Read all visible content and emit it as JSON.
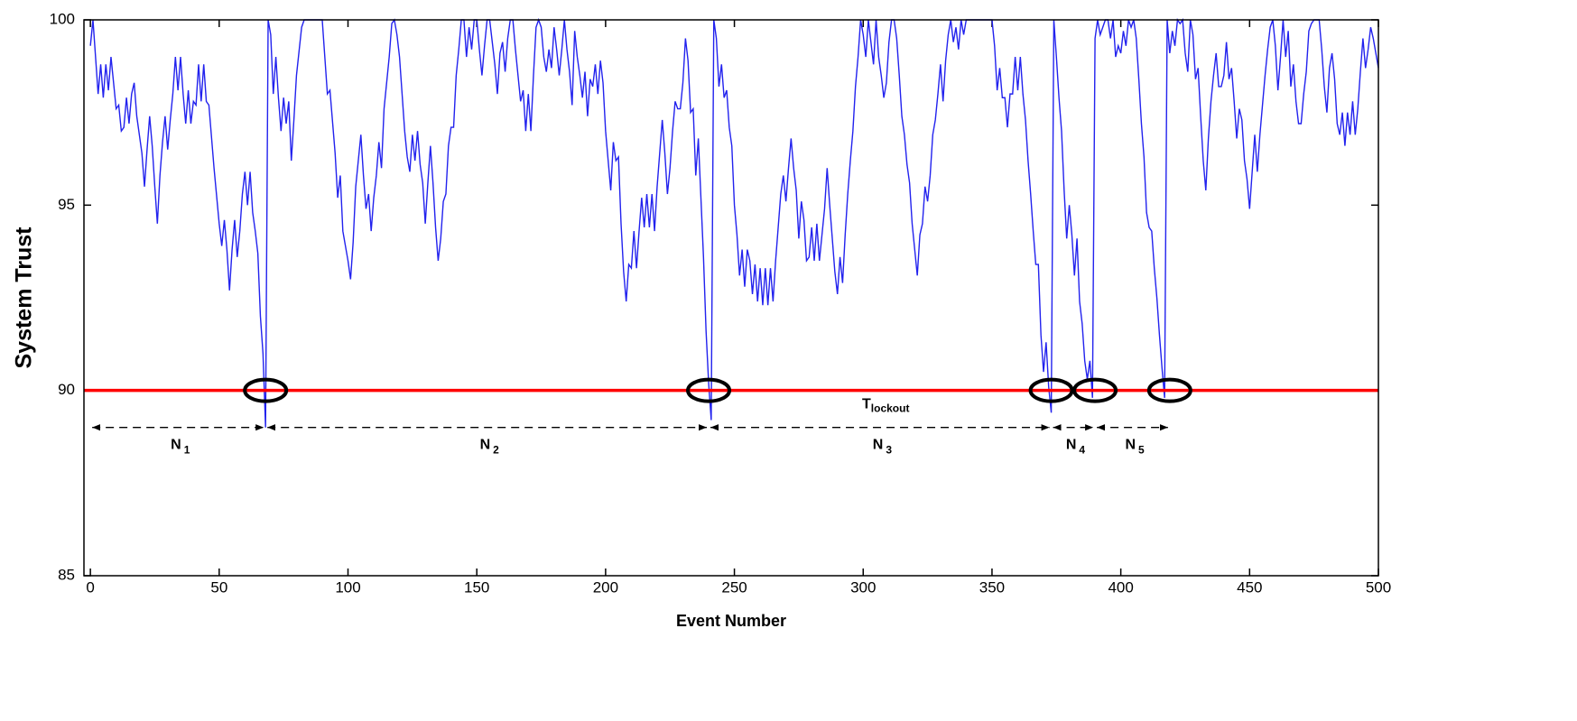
{
  "chart_data": {
    "type": "line",
    "xlabel": "Event Number",
    "ylabel": "System Trust",
    "color": "#2222ee",
    "xlim": [
      -2.5,
      500
    ],
    "ylim": [
      85,
      100
    ],
    "xticks": [
      0,
      50,
      100,
      150,
      200,
      250,
      300,
      350,
      400,
      450,
      500
    ],
    "yticks": [
      85,
      90,
      95,
      100
    ],
    "threshold": {
      "value": 90,
      "color": "#ff0000",
      "label": "T",
      "sub": "lockout"
    },
    "lockouts": [
      68,
      240,
      373,
      390,
      419
    ],
    "intervals": [
      {
        "label": "N",
        "sub": "1"
      },
      {
        "label": "N",
        "sub": "2"
      },
      {
        "label": "N",
        "sub": "3"
      },
      {
        "label": "N",
        "sub": "4"
      },
      {
        "label": "N",
        "sub": "5"
      }
    ],
    "x": [
      0,
      1,
      3,
      4,
      5,
      6,
      7,
      8,
      9,
      10,
      11,
      12,
      13,
      14,
      15,
      16,
      17,
      18,
      20,
      21,
      22,
      23,
      24,
      25,
      26,
      27,
      28,
      29,
      30,
      31,
      32,
      33,
      34,
      35,
      36,
      37,
      38,
      39,
      40,
      41,
      42,
      43,
      44,
      45,
      46,
      48,
      50,
      51,
      52,
      53,
      54,
      55,
      56,
      57,
      58,
      59,
      60,
      61,
      62,
      63,
      64,
      65,
      66,
      67,
      68,
      69,
      70,
      71,
      72,
      73,
      74,
      75,
      76,
      77,
      78,
      79,
      80,
      82,
      83,
      87,
      90,
      92,
      93,
      95,
      96,
      97,
      98,
      100,
      101,
      102,
      103,
      104,
      105,
      106,
      107,
      108,
      109,
      110,
      111,
      112,
      113,
      114,
      116,
      117,
      118,
      119,
      120,
      121,
      122,
      123,
      124,
      125,
      126,
      127,
      128,
      129,
      130,
      131,
      132,
      133,
      134,
      135,
      136,
      137,
      138,
      139,
      140,
      141,
      142,
      143,
      144,
      145,
      146,
      147,
      148,
      149,
      150,
      151,
      152,
      153,
      154,
      155,
      156,
      157,
      158,
      159,
      160,
      161,
      162,
      163,
      164,
      165,
      166,
      167,
      168,
      169,
      170,
      171,
      172,
      173,
      174,
      175,
      176,
      177,
      178,
      179,
      180,
      181,
      182,
      183,
      184,
      185,
      186,
      187,
      188,
      189,
      190,
      191,
      192,
      193,
      194,
      195,
      196,
      197,
      198,
      199,
      200,
      201,
      202,
      203,
      204,
      205,
      206,
      207,
      208,
      209,
      210,
      211,
      212,
      213,
      214,
      215,
      216,
      217,
      218,
      219,
      220,
      221,
      222,
      223,
      224,
      225,
      226,
      227,
      228,
      229,
      230,
      231,
      232,
      233,
      234,
      235,
      236,
      237,
      238,
      239,
      240,
      241,
      242,
      243,
      244,
      245,
      246,
      247,
      248,
      249,
      250,
      251,
      252,
      253,
      254,
      255,
      256,
      257,
      258,
      259,
      260,
      261,
      262,
      263,
      264,
      265,
      266,
      267,
      268,
      269,
      270,
      271,
      272,
      273,
      274,
      275,
      276,
      277,
      278,
      279,
      280,
      281,
      282,
      283,
      284,
      285,
      286,
      287,
      288,
      289,
      290,
      291,
      292,
      293,
      294,
      295,
      296,
      297,
      298,
      299,
      300,
      301,
      302,
      303,
      304,
      305,
      306,
      307,
      308,
      309,
      310,
      311,
      312,
      313,
      314,
      315,
      316,
      317,
      318,
      319,
      320,
      321,
      322,
      323,
      324,
      325,
      326,
      327,
      328,
      329,
      330,
      331,
      332,
      333,
      334,
      335,
      336,
      337,
      338,
      339,
      340,
      350,
      351,
      352,
      353,
      354,
      355,
      356,
      357,
      358,
      359,
      360,
      361,
      362,
      363,
      364,
      365,
      366,
      367,
      368,
      369,
      370,
      371,
      372,
      373,
      374,
      375,
      376,
      377,
      378,
      379,
      380,
      381,
      382,
      383,
      384,
      385,
      386,
      387,
      388,
      389,
      390,
      391,
      392,
      393,
      394,
      395,
      396,
      397,
      398,
      399,
      400,
      401,
      402,
      403,
      404,
      405,
      406,
      407,
      408,
      409,
      410,
      411,
      412,
      413,
      414,
      415,
      416,
      417,
      418,
      419,
      420,
      421,
      422,
      423,
      424,
      425,
      426,
      427,
      428,
      429,
      430,
      431,
      432,
      433,
      434,
      435,
      436,
      437,
      438,
      439,
      440,
      441,
      442,
      443,
      444,
      445,
      446,
      447,
      448,
      449,
      450,
      451,
      452,
      453,
      454,
      455,
      456,
      457,
      458,
      459,
      460,
      461,
      462,
      463,
      464,
      465,
      466,
      467,
      468,
      469,
      470,
      471,
      472,
      473,
      474,
      475,
      476,
      477,
      478,
      479,
      480,
      481,
      482,
      483,
      484,
      485,
      486,
      487,
      488,
      489,
      490,
      491,
      492,
      493,
      494,
      495,
      496,
      497,
      498,
      500
    ],
    "values": [
      99.3,
      100,
      98,
      98.8,
      97.9,
      98.8,
      98.1,
      99,
      98.3,
      97.6,
      97.7,
      97,
      97.1,
      97.9,
      97.2,
      98,
      98.3,
      97.4,
      96.4,
      95.5,
      96.5,
      97.4,
      96.6,
      95.5,
      94.5,
      95.8,
      96.7,
      97.4,
      96.5,
      97.3,
      98,
      99,
      98.1,
      99,
      98,
      97.2,
      98.1,
      97.2,
      97.8,
      97.7,
      98.8,
      97.8,
      98.8,
      97.8,
      97.7,
      96,
      94.5,
      93.9,
      94.6,
      93.8,
      92.7,
      93.8,
      94.6,
      93.6,
      94.3,
      95.3,
      95.9,
      95,
      95.9,
      94.8,
      94.3,
      93.7,
      92,
      91,
      89,
      100,
      99.6,
      98,
      99,
      97.9,
      97,
      97.9,
      97.2,
      97.8,
      96.2,
      97.3,
      98.5,
      99.8,
      100,
      100,
      100,
      98,
      98.1,
      96.4,
      95.2,
      95.8,
      94.3,
      93.5,
      93,
      94,
      95.5,
      96.2,
      96.9,
      95.8,
      94.9,
      95.3,
      94.3,
      95.2,
      95.8,
      96.7,
      96,
      97.6,
      99,
      99.9,
      100,
      99.6,
      99,
      98,
      97,
      96.3,
      95.9,
      96.9,
      96.2,
      97,
      96.1,
      95.6,
      94.5,
      95.6,
      96.6,
      95.6,
      94.4,
      93.5,
      94.1,
      95.1,
      95.3,
      96.6,
      97.1,
      97.1,
      98.5,
      99.2,
      100,
      100,
      99,
      99.8,
      99.2,
      100,
      100,
      99.2,
      98.5,
      99.3,
      100,
      100,
      99.4,
      98.8,
      98,
      99.1,
      99.4,
      98.6,
      99.5,
      100,
      100,
      99.2,
      98.5,
      97.8,
      98.1,
      97,
      98,
      97,
      98.5,
      99.8,
      100,
      99.8,
      99,
      98.6,
      99.2,
      98.7,
      99.8,
      99.2,
      98.5,
      99.2,
      100,
      99.2,
      98.6,
      97.7,
      99.7,
      99,
      98.5,
      97.9,
      98.6,
      97.4,
      98.4,
      98.2,
      98.8,
      98,
      98.9,
      98.3,
      97,
      96.2,
      95.4,
      96.7,
      96.2,
      96.3,
      94.5,
      93.2,
      92.4,
      93.4,
      93.3,
      94.3,
      93.3,
      94.3,
      95.2,
      94.4,
      95.3,
      94.4,
      95.3,
      94.3,
      95.5,
      96.4,
      97.3,
      96.4,
      95.3,
      96,
      97,
      97.8,
      97.6,
      97.6,
      98.3,
      99.5,
      98.9,
      97.5,
      97.6,
      95.8,
      96.8,
      95.2,
      93.6,
      91.6,
      90.2,
      89.2,
      100,
      99.5,
      98.2,
      98.8,
      97.9,
      98.1,
      97.1,
      96.6,
      95,
      94.2,
      93.1,
      93.8,
      92.8,
      93.8,
      93.5,
      92.6,
      93.4,
      92.4,
      93.3,
      92.3,
      93.3,
      92.3,
      93.3,
      92.4,
      93.5,
      94.4,
      95.3,
      95.8,
      95.1,
      96,
      96.8,
      96,
      95.4,
      94.1,
      95.1,
      94.6,
      93.5,
      93.6,
      94.4,
      93.5,
      94.5,
      93.5,
      94.2,
      94.9,
      96,
      95,
      94.1,
      93.2,
      92.6,
      93.6,
      92.9,
      94.2,
      95.3,
      96.2,
      97,
      98.2,
      99,
      100,
      99.6,
      99,
      100,
      99.4,
      98.8,
      100,
      99,
      98.5,
      97.9,
      98.3,
      99.4,
      100,
      100,
      99.5,
      98.5,
      97.4,
      96.9,
      96.1,
      95.6,
      94.5,
      93.8,
      93.1,
      94.2,
      94.5,
      95.5,
      95.1,
      95.8,
      96.9,
      97.3,
      98,
      98.8,
      97.8,
      98.9,
      99.6,
      100,
      99.4,
      99.8,
      99.2,
      100,
      99.6,
      100,
      100,
      99.3,
      98.1,
      98.7,
      97.9,
      97.9,
      97.1,
      98,
      98,
      99,
      98.1,
      99,
      98,
      97.3,
      96.2,
      95.3,
      94.3,
      93.4,
      93.4,
      91.5,
      90.5,
      91.3,
      90.1,
      89.4,
      100,
      99,
      97.9,
      97,
      95.4,
      94.1,
      95,
      94.2,
      93.1,
      94.1,
      92.4,
      91.8,
      90.8,
      90.3,
      90.8,
      89.8,
      99.5,
      100,
      99.6,
      99.8,
      100,
      100,
      99.5,
      100,
      99,
      99.3,
      99.1,
      99.7,
      99.3,
      100,
      99.8,
      100,
      99.5,
      98.4,
      97.2,
      96.3,
      94.8,
      94.4,
      94.3,
      93.3,
      92.5,
      91.5,
      90.6,
      89.8,
      100,
      99.1,
      99.7,
      99.3,
      100,
      99.9,
      100,
      99.1,
      98.6,
      100,
      99.6,
      98.4,
      98.7,
      97.4,
      96.2,
      95.4,
      96.8,
      97.8,
      98.5,
      99.1,
      98.2,
      98.2,
      98.5,
      99.4,
      98.4,
      98.7,
      97.8,
      96.8,
      97.6,
      97.3,
      96.2,
      95.7,
      94.9,
      95.9,
      96.9,
      95.9,
      96.9,
      97.7,
      98.5,
      99.2,
      99.8,
      100,
      99.3,
      98.1,
      99,
      100,
      99,
      99.7,
      98.2,
      98.8,
      97.8,
      97.2,
      97.2,
      98,
      98.6,
      99.7,
      99.9,
      100,
      100,
      100,
      99.2,
      98.2,
      97.5,
      98.7,
      99.1,
      98.4,
      97.2,
      96.9,
      97.5,
      96.6,
      97.5,
      96.9,
      97.8,
      96.9,
      97.6,
      98.6,
      99.5,
      98.7,
      99.2,
      99.8,
      99.5,
      98.7
    ]
  }
}
